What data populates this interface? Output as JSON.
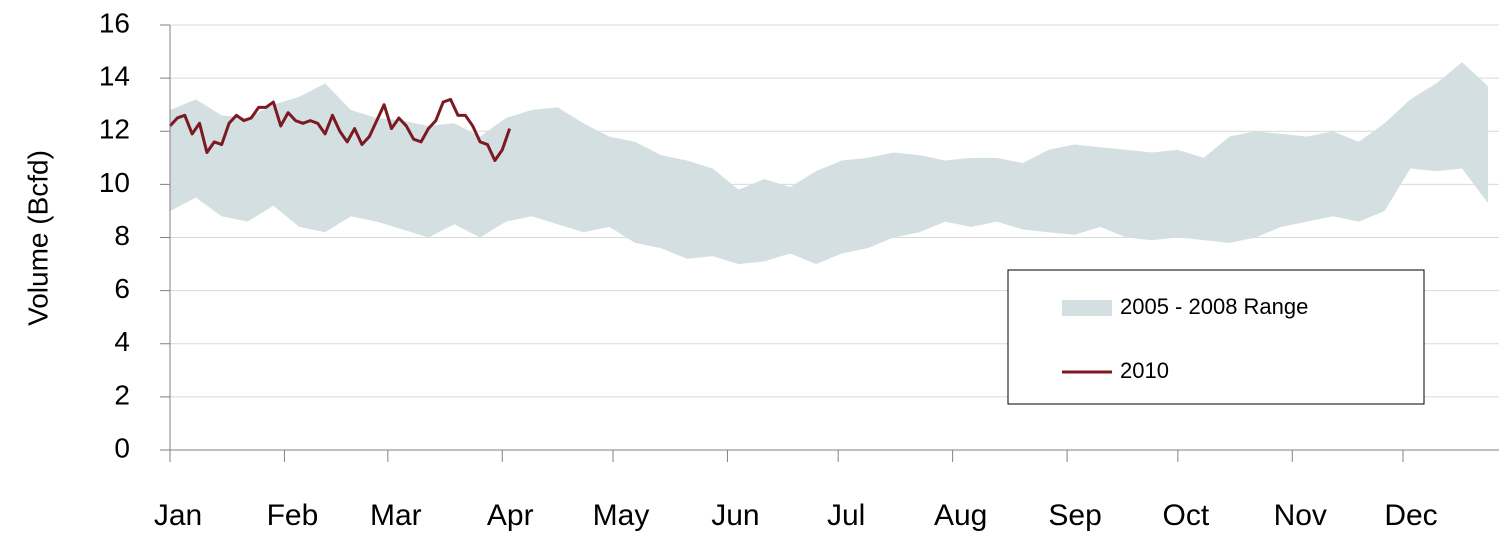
{
  "chart_data": {
    "type": "range-line",
    "y_label": "Volume (Bcfd)",
    "xlim": [
      0,
      360
    ],
    "xticks": [
      {
        "value": 0,
        "label": "Jan"
      },
      {
        "value": 31,
        "label": "Feb"
      },
      {
        "value": 59,
        "label": "Mar"
      },
      {
        "value": 90,
        "label": "Apr"
      },
      {
        "value": 120,
        "label": "May"
      },
      {
        "value": 151,
        "label": "Jun"
      },
      {
        "value": 181,
        "label": "Jul"
      },
      {
        "value": 212,
        "label": "Aug"
      },
      {
        "value": 243,
        "label": "Sep"
      },
      {
        "value": 273,
        "label": "Oct"
      },
      {
        "value": 304,
        "label": "Nov"
      },
      {
        "value": 334,
        "label": "Dec"
      }
    ],
    "ylim": [
      0,
      16
    ],
    "yticks": [
      0,
      2,
      4,
      6,
      8,
      10,
      12,
      14,
      16
    ],
    "grid": true,
    "legend": "right",
    "series": [
      {
        "name": "2005 - 2008 Range",
        "color": "#d3dfe0",
        "x": [
          0,
          7,
          14,
          21,
          28,
          35,
          42,
          49,
          56,
          63,
          70,
          77,
          84,
          91,
          98,
          105,
          112,
          119,
          126,
          133,
          140,
          147,
          154,
          161,
          168,
          175,
          182,
          189,
          196,
          203,
          210,
          217,
          224,
          231,
          238,
          245,
          252,
          259,
          266,
          273,
          280,
          287,
          294,
          301,
          308,
          315,
          322,
          329,
          336,
          343,
          350,
          357
        ],
        "high": [
          12.8,
          13.2,
          12.6,
          12.5,
          13.0,
          13.3,
          13.8,
          12.8,
          12.5,
          12.4,
          12.2,
          12.3,
          11.8,
          12.5,
          12.8,
          12.9,
          12.3,
          11.8,
          11.6,
          11.1,
          10.9,
          10.6,
          9.8,
          10.2,
          9.9,
          10.5,
          10.9,
          11.0,
          11.2,
          11.1,
          10.9,
          11.0,
          11.0,
          10.8,
          11.3,
          11.5,
          11.4,
          11.3,
          11.2,
          11.3,
          11.0,
          11.8,
          12.0,
          11.9,
          11.8,
          12.0,
          11.6,
          12.3,
          13.2,
          13.8,
          14.6,
          13.7
        ],
        "low": [
          9.0,
          9.5,
          8.8,
          8.6,
          9.2,
          8.4,
          8.2,
          8.8,
          8.6,
          8.3,
          8.0,
          8.5,
          8.0,
          8.6,
          8.8,
          8.5,
          8.2,
          8.4,
          7.8,
          7.6,
          7.2,
          7.3,
          7.0,
          7.1,
          7.4,
          7.0,
          7.4,
          7.6,
          8.0,
          8.2,
          8.6,
          8.4,
          8.6,
          8.3,
          8.2,
          8.1,
          8.4,
          8.0,
          7.9,
          8.0,
          7.9,
          7.8,
          8.0,
          8.4,
          8.6,
          8.8,
          8.6,
          9.0,
          10.6,
          10.5,
          10.6,
          9.3
        ]
      },
      {
        "name": "2010",
        "color": "#7b1a22",
        "x": [
          0,
          2,
          4,
          6,
          8,
          10,
          12,
          14,
          16,
          18,
          20,
          22,
          24,
          26,
          28,
          30,
          32,
          34,
          36,
          38,
          40,
          42,
          44,
          46,
          48,
          50,
          52,
          54,
          56,
          58,
          60,
          62,
          64,
          66,
          68,
          70,
          72,
          74,
          76,
          78,
          80,
          82,
          84,
          86,
          88,
          90,
          92
        ],
        "values": [
          12.2,
          12.5,
          12.6,
          11.9,
          12.3,
          11.2,
          11.6,
          11.5,
          12.3,
          12.6,
          12.4,
          12.5,
          12.9,
          12.9,
          13.1,
          12.2,
          12.7,
          12.4,
          12.3,
          12.4,
          12.3,
          11.9,
          12.6,
          12.0,
          11.6,
          12.1,
          11.5,
          11.8,
          12.4,
          13.0,
          12.1,
          12.5,
          12.2,
          11.7,
          11.6,
          12.1,
          12.4,
          13.1,
          13.2,
          12.6,
          12.6,
          12.2,
          11.6,
          11.5,
          10.9,
          11.3,
          12.1
        ]
      }
    ]
  }
}
